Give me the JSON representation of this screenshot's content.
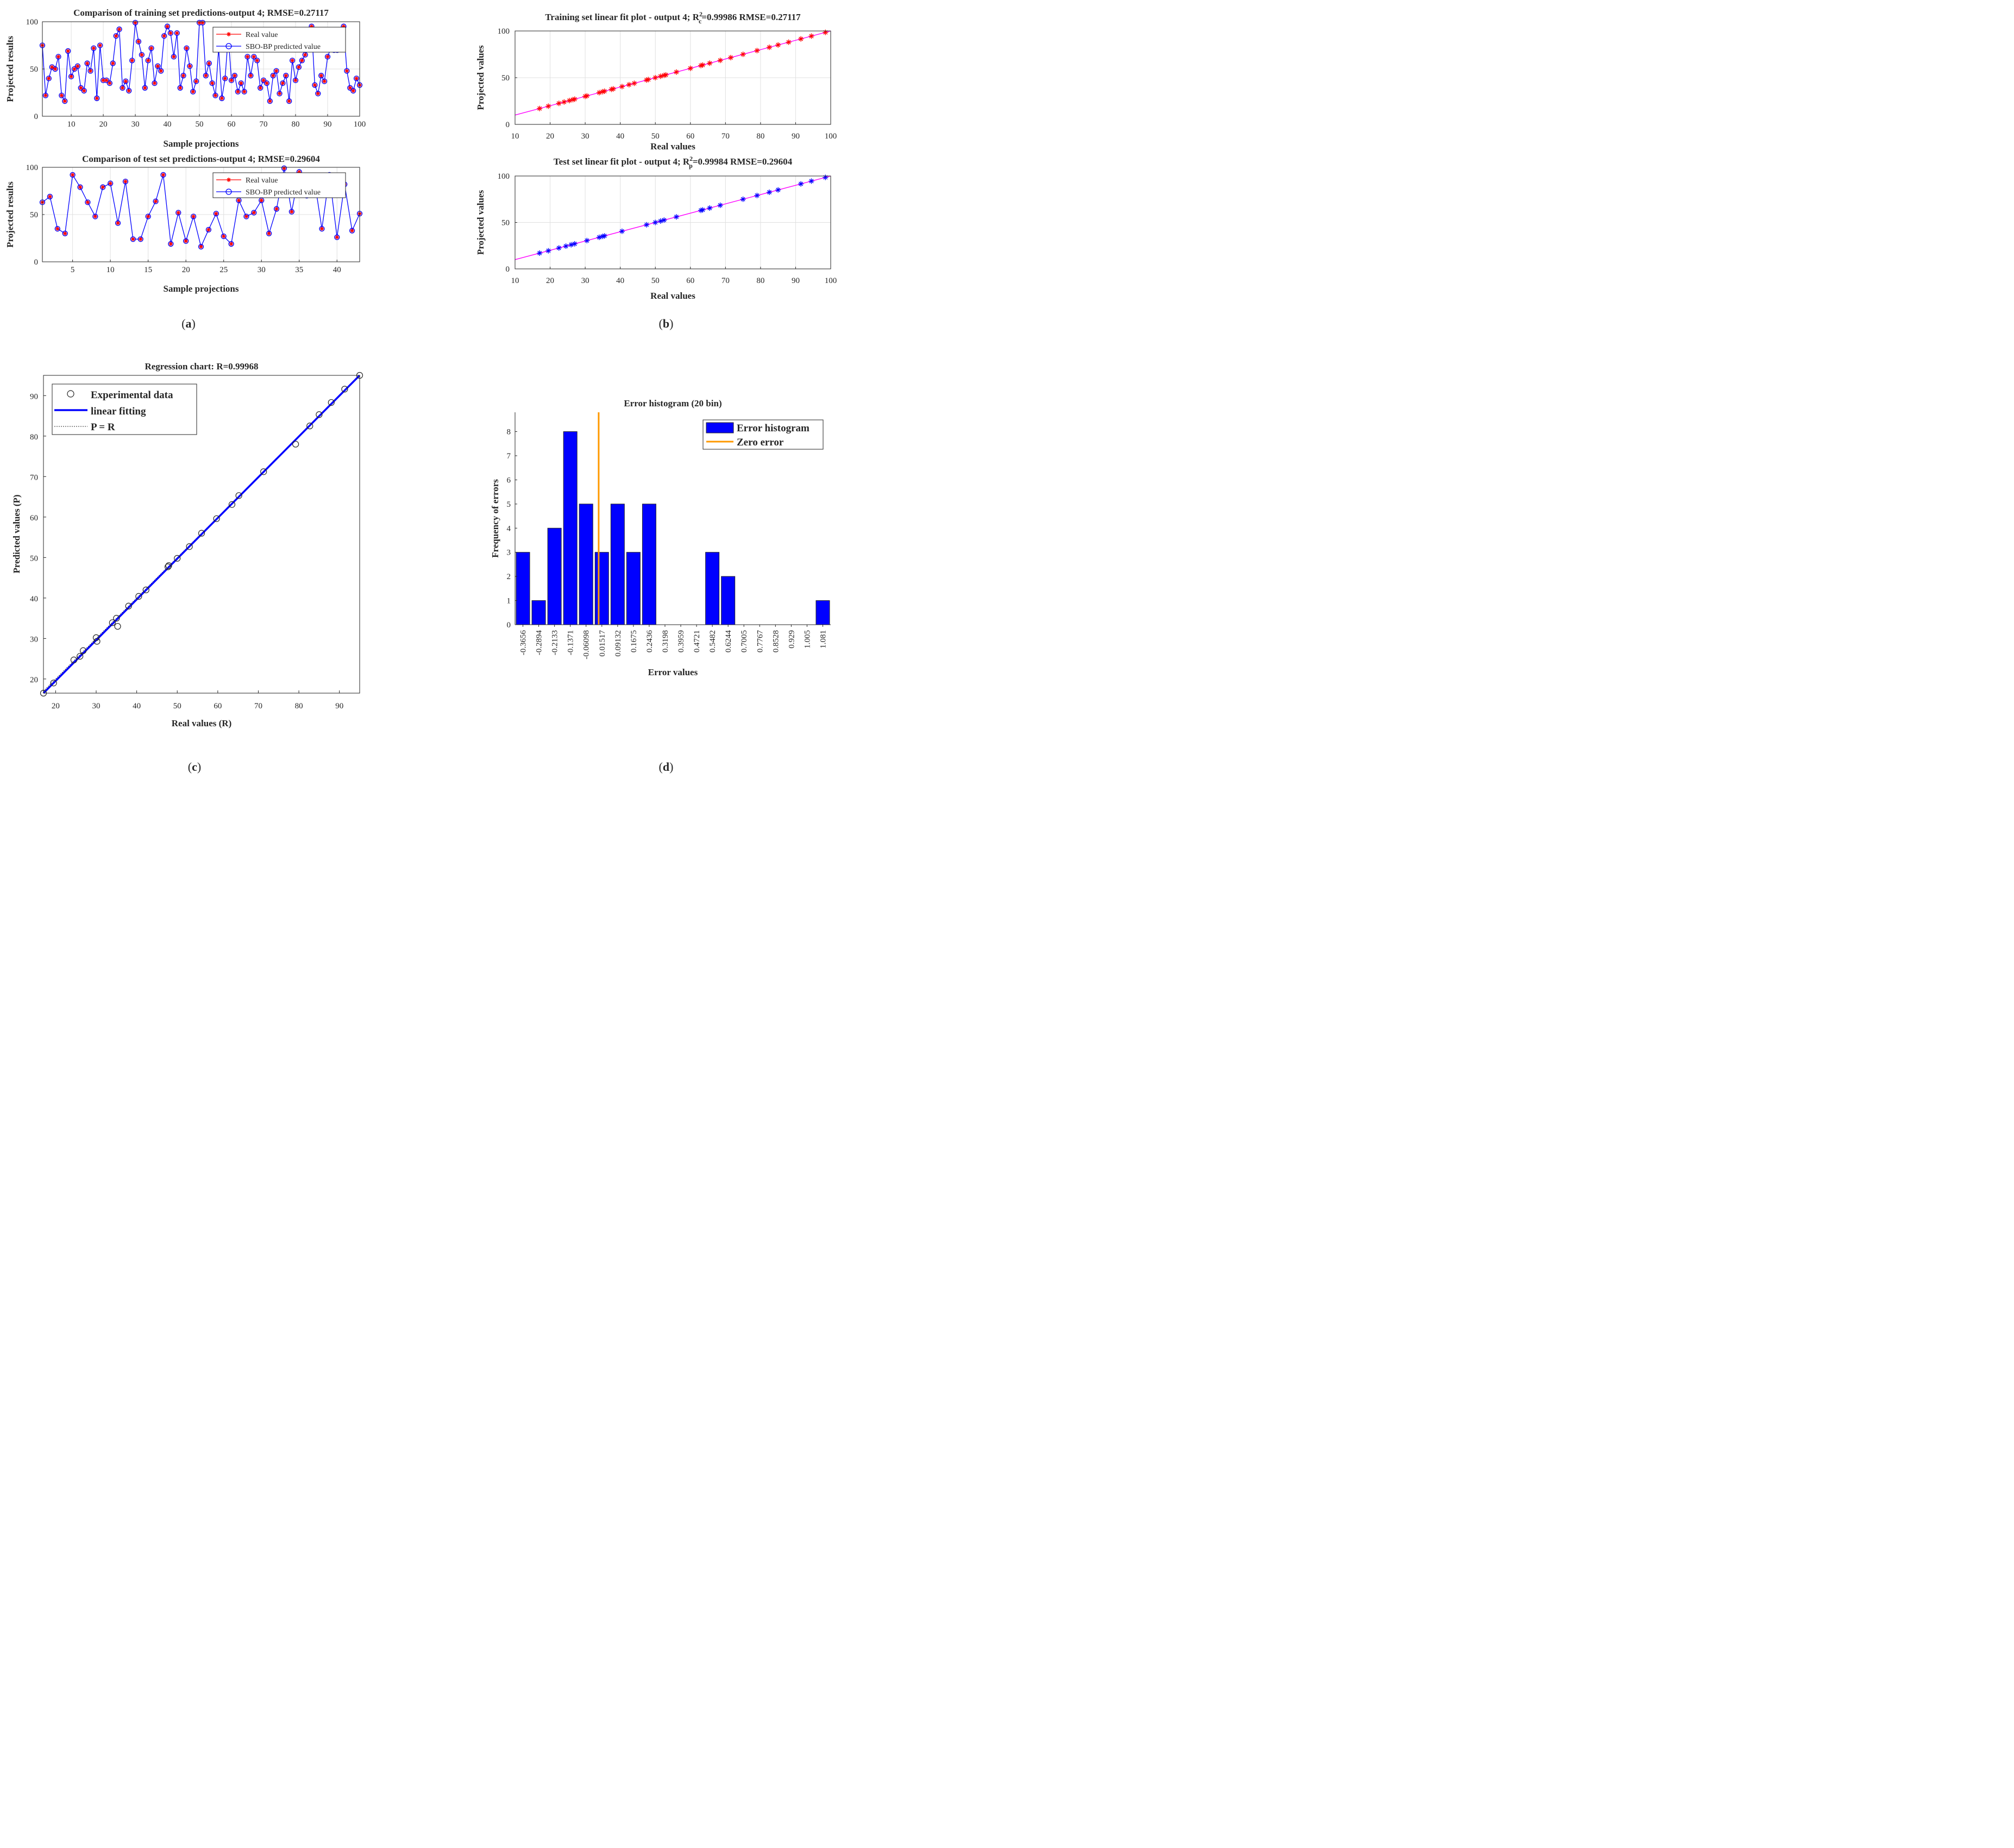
{
  "chart_data": [
    {
      "id": "training_comparison",
      "type": "line",
      "title": "Comparison of training set predictions-output 4; RMSE=0.27117",
      "xlabel": "Sample projections",
      "ylabel": "Projected results",
      "xlim": [
        1,
        100
      ],
      "ylim": [
        0,
        100
      ],
      "xticks": [
        10,
        20,
        30,
        40,
        50,
        60,
        70,
        80,
        90,
        100
      ],
      "yticks": [
        0,
        50,
        100
      ],
      "grid": true,
      "legend_position": "top-right",
      "legend": [
        "Real value",
        "SBO-BP predicted value"
      ],
      "series": [
        {
          "name": "Real value",
          "color": "#ff0000",
          "marker": "asterisk",
          "values": [
            75,
            22,
            40,
            52,
            50,
            63,
            22,
            16,
            69,
            42,
            50,
            53,
            30,
            27,
            56,
            48,
            72,
            19,
            75,
            38,
            38,
            35,
            56,
            85,
            92,
            30,
            37,
            27,
            59,
            99,
            79,
            65,
            30,
            59,
            72,
            35,
            53,
            48,
            85,
            95,
            88,
            63,
            88,
            30,
            43,
            72,
            53,
            26,
            37,
            99,
            99,
            43,
            56,
            35,
            22,
            72,
            19,
            40,
            85,
            38,
            43,
            26,
            35,
            26,
            63,
            43,
            63,
            59,
            30,
            38,
            35,
            16,
            43,
            48,
            24,
            35,
            43,
            16,
            59,
            38,
            52,
            59,
            65,
            75,
            95,
            33,
            24,
            43,
            37,
            63,
            72,
            70,
            70,
            75,
            95,
            48,
            30,
            27,
            40,
            33
          ]
        },
        {
          "name": "SBO-BP predicted value",
          "color": "#0000ff",
          "marker": "circle",
          "values": [
            75,
            22,
            40,
            52,
            50,
            63,
            22,
            16,
            69,
            42,
            50,
            53,
            30,
            27,
            56,
            48,
            72,
            19,
            75,
            38,
            38,
            35,
            56,
            85,
            92,
            30,
            37,
            27,
            59,
            99,
            79,
            65,
            30,
            59,
            72,
            35,
            53,
            48,
            85,
            95,
            88,
            63,
            88,
            30,
            43,
            72,
            53,
            26,
            37,
            99,
            99,
            43,
            56,
            35,
            22,
            72,
            19,
            40,
            85,
            38,
            43,
            26,
            35,
            26,
            63,
            43,
            63,
            59,
            30,
            38,
            35,
            16,
            43,
            48,
            24,
            35,
            43,
            16,
            59,
            38,
            52,
            59,
            65,
            75,
            95,
            33,
            24,
            43,
            37,
            63,
            72,
            70,
            70,
            75,
            95,
            48,
            30,
            27,
            40,
            33
          ]
        }
      ]
    },
    {
      "id": "test_comparison",
      "type": "line",
      "title": "Comparison of test set predictions-output 4; RMSE=0.29604",
      "xlabel": "Sample projections",
      "ylabel": "Projected results",
      "xlim": [
        1,
        43
      ],
      "ylim": [
        0,
        100
      ],
      "xticks": [
        5,
        10,
        15,
        20,
        25,
        30,
        35,
        40
      ],
      "yticks": [
        0,
        50,
        100
      ],
      "grid": true,
      "legend_position": "top-right",
      "legend": [
        "Real value",
        "SBO-BP predicted value"
      ],
      "series": [
        {
          "name": "Real value",
          "color": "#ff0000",
          "marker": "asterisk",
          "values": [
            63,
            69,
            35,
            30,
            92,
            79,
            63,
            48,
            79,
            83,
            41,
            85,
            24,
            24,
            48,
            64,
            92,
            19,
            52,
            22,
            48,
            16,
            34,
            51,
            27,
            19,
            65,
            48,
            52,
            65,
            30,
            56,
            99,
            53,
            95,
            70,
            87,
            35,
            92,
            26,
            82,
            33,
            51
          ]
        },
        {
          "name": "SBO-BP predicted value",
          "color": "#0000ff",
          "marker": "circle",
          "values": [
            63,
            69,
            35,
            30,
            92,
            79,
            63,
            48,
            79,
            83,
            41,
            85,
            24,
            24,
            48,
            64,
            92,
            19,
            52,
            22,
            48,
            16,
            34,
            51,
            27,
            19,
            65,
            48,
            52,
            65,
            30,
            56,
            99,
            53,
            95,
            70,
            87,
            35,
            92,
            26,
            82,
            33,
            51
          ]
        }
      ]
    },
    {
      "id": "training_linear_fit",
      "type": "scatter",
      "title_prefix": "Training set linear fit plot - output 4; R",
      "title_sup": "2",
      "title_sub": "c",
      "title_suffix": "=0.99986  RMSE=0.27117",
      "xlabel": "Real values",
      "ylabel": "Projected values",
      "xlim": [
        10,
        100
      ],
      "ylim": [
        0,
        100
      ],
      "xticks": [
        10,
        20,
        30,
        40,
        50,
        60,
        70,
        80,
        90,
        100
      ],
      "yticks": [
        0,
        50,
        100
      ],
      "grid": true,
      "fit_line": {
        "color": "#ff00ff",
        "x": [
          10,
          100
        ],
        "y": [
          10,
          100
        ]
      },
      "points_color": "#ff0000",
      "points": [
        17,
        19.5,
        22.5,
        24,
        25.5,
        26.5,
        27,
        30,
        30.5,
        34,
        35,
        35.5,
        37.5,
        38,
        40.5,
        42.5,
        44,
        47.5,
        48,
        50,
        51.5,
        52.5,
        53,
        56,
        60,
        63,
        63.5,
        65.5,
        68.5,
        71.5,
        75,
        79,
        82.5,
        85,
        88,
        91.5,
        94.5,
        98.5
      ]
    },
    {
      "id": "test_linear_fit",
      "type": "scatter",
      "title_prefix": "Test set linear fit plot - output 4; R",
      "title_sup": "2",
      "title_sub": "p",
      "title_suffix": "=0.99984  RMSE=0.29604",
      "xlabel": "Real values",
      "ylabel": "Projected values",
      "xlim": [
        10,
        100
      ],
      "ylim": [
        0,
        100
      ],
      "xticks": [
        10,
        20,
        30,
        40,
        50,
        60,
        70,
        80,
        90,
        100
      ],
      "yticks": [
        0,
        50,
        100
      ],
      "grid": true,
      "fit_line": {
        "color": "#ff00ff",
        "x": [
          10,
          100
        ],
        "y": [
          10,
          100
        ]
      },
      "points_color": "#0000ff",
      "points": [
        17,
        19.5,
        22.5,
        24.5,
        26,
        27,
        30.5,
        34,
        35,
        35.5,
        40.5,
        47.5,
        50,
        51.5,
        52.5,
        56,
        63,
        63.5,
        65.5,
        68.5,
        75,
        79,
        82.5,
        85,
        91.5,
        94.5,
        98.5
      ]
    },
    {
      "id": "regression",
      "type": "scatter",
      "title": "Regression chart: R=0.99968",
      "xlabel": "Real values (R)",
      "ylabel": "Predicted values (P)",
      "xlim": [
        17,
        95
      ],
      "ylim": [
        16.5,
        95
      ],
      "xticks": [
        20,
        30,
        40,
        50,
        60,
        70,
        80,
        90
      ],
      "yticks": [
        20,
        30,
        40,
        50,
        60,
        70,
        80,
        90
      ],
      "grid": false,
      "legend_position": "top-left",
      "legend": [
        "Experimental data",
        "linear fitting",
        "P = R"
      ],
      "points": [
        [
          17,
          16.5
        ],
        [
          19.5,
          19
        ],
        [
          24.5,
          24.7
        ],
        [
          26,
          25.6
        ],
        [
          26.8,
          27
        ],
        [
          30,
          30.2
        ],
        [
          30.2,
          29.3
        ],
        [
          34,
          33.9
        ],
        [
          35,
          35
        ],
        [
          35.3,
          33
        ],
        [
          38,
          38
        ],
        [
          40.5,
          40.4
        ],
        [
          42.3,
          42
        ],
        [
          47.7,
          47.7
        ],
        [
          47.9,
          48
        ],
        [
          50,
          49.8
        ],
        [
          53,
          52.7
        ],
        [
          56,
          56
        ],
        [
          59.7,
          59.6
        ],
        [
          63.5,
          63.1
        ],
        [
          65.2,
          65.3
        ],
        [
          71.3,
          71.2
        ],
        [
          79.2,
          78
        ],
        [
          82.7,
          82.5
        ],
        [
          85,
          85.3
        ],
        [
          88,
          88.3
        ],
        [
          91.3,
          91.6
        ],
        [
          95,
          95
        ]
      ]
    },
    {
      "id": "error_histogram",
      "type": "bar",
      "title": "Error histogram (20 bin)",
      "xlabel": "Error values",
      "ylabel": "Frequency of errors",
      "categories": [
        "-0.3656",
        "-0.2894",
        "-0.2133",
        "-0.1371",
        "-0.06098",
        "0.01517",
        "0.09132",
        "0.1675",
        "0.2436",
        "0.3198",
        "0.3959",
        "0.4721",
        "0.5482",
        "0.6244",
        "0.7005",
        "0.7767",
        "0.8528",
        "0.929",
        "1.005",
        "1.081"
      ],
      "values": [
        3,
        1,
        4,
        8,
        5,
        3,
        5,
        3,
        5,
        0,
        0,
        0,
        3,
        2,
        0,
        0,
        0,
        0,
        0,
        1
      ],
      "ylim": [
        0,
        8.8
      ],
      "yticks": [
        0,
        1,
        2,
        3,
        4,
        5,
        6,
        7,
        8
      ],
      "zero_error_position": 0.01517,
      "legend_position": "top-right",
      "legend": [
        "Error histogram",
        "Zero error"
      ],
      "colors": {
        "bars": "#0000ff",
        "zero_line": "#ff9900"
      }
    }
  ],
  "panel_labels": [
    "a",
    "b",
    "c",
    "d"
  ]
}
